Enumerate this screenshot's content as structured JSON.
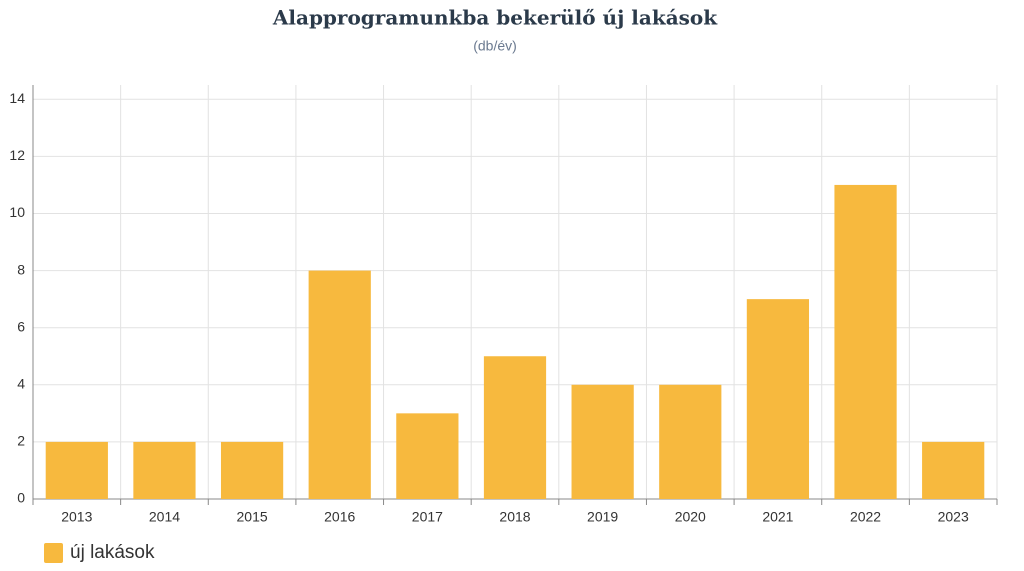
{
  "chart_data": {
    "type": "bar",
    "title": "Alapprogramunkba bekerülő új lakások",
    "subtitle": "(db/év)",
    "categories": [
      "2013",
      "2014",
      "2015",
      "2016",
      "2017",
      "2018",
      "2019",
      "2020",
      "2021",
      "2022",
      "2023"
    ],
    "series": [
      {
        "name": "új lakások",
        "color": "#f7b93e",
        "values": [
          2,
          2,
          2,
          8,
          3,
          5,
          4,
          4,
          7,
          11,
          2
        ]
      }
    ],
    "ylim": [
      0,
      14.5
    ],
    "yticks": [
      0,
      2,
      4,
      6,
      8,
      10,
      12,
      14
    ],
    "grid": true,
    "legend": "bottom-left"
  }
}
